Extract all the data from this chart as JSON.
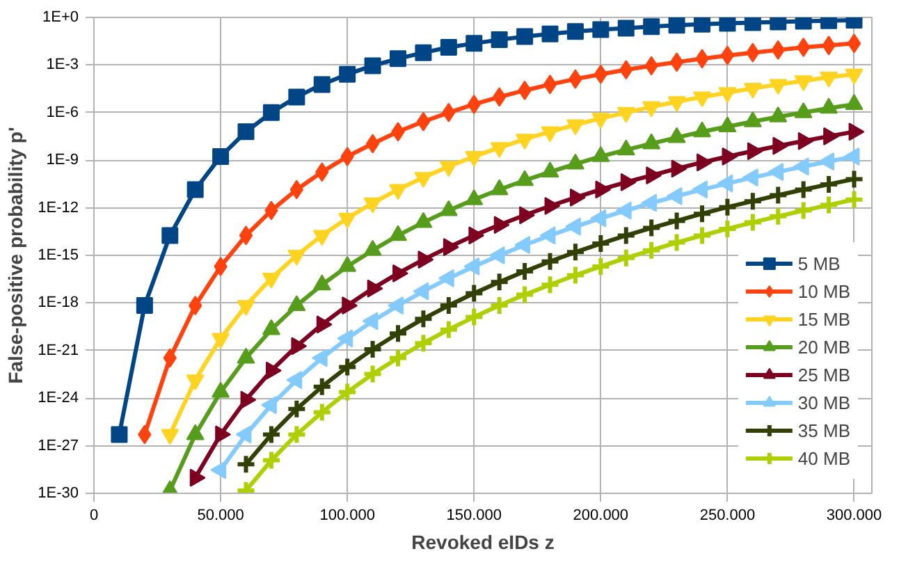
{
  "chart_data": {
    "type": "line",
    "xlabel": "Revoked eIDs z",
    "ylabel": "False-positive probability p'",
    "log": "y",
    "x": [
      10000,
      20000,
      30000,
      40000,
      50000,
      60000,
      70000,
      80000,
      90000,
      100000,
      110000,
      120000,
      130000,
      140000,
      150000,
      160000,
      170000,
      180000,
      190000,
      200000,
      210000,
      220000,
      230000,
      240000,
      250000,
      260000,
      270000,
      280000,
      290000,
      300000
    ],
    "xlim": [
      0,
      307000
    ],
    "xticks": [
      {
        "value": 0,
        "label": "0"
      },
      {
        "value": 50000,
        "label": "50.000"
      },
      {
        "value": 100000,
        "label": "100.000"
      },
      {
        "value": 150000,
        "label": "150.000"
      },
      {
        "value": 200000,
        "label": "200.000"
      },
      {
        "value": 250000,
        "label": "250.000"
      },
      {
        "value": 300000,
        "label": "300.000"
      }
    ],
    "ylim": [
      1e-30,
      1
    ],
    "yticks": [
      {
        "value": 1,
        "label": "1E+0"
      },
      {
        "value": 0.001,
        "label": "1E-3"
      },
      {
        "value": 1e-06,
        "label": "1E-6"
      },
      {
        "value": 1e-09,
        "label": "1E-9"
      },
      {
        "value": 1e-12,
        "label": "1E-12"
      },
      {
        "value": 1e-15,
        "label": "1E-15"
      },
      {
        "value": 1e-18,
        "label": "1E-18"
      },
      {
        "value": 1e-21,
        "label": "1E-21"
      },
      {
        "value": 1e-24,
        "label": "1E-24"
      },
      {
        "value": 1e-27,
        "label": "1E-27"
      },
      {
        "value": 1e-30,
        "label": "1E-30"
      }
    ],
    "grid": true,
    "legend": "bottom right",
    "line_style": "solid",
    "series": [
      {
        "name": "5 MB",
        "color": "#004586",
        "marker": "square",
        "values": [
          5.1e-27,
          6.9e-19,
          1.8e-14,
          1.4e-11,
          1.7e-09,
          6.2e-08,
          1e-06,
          9.6e-06,
          5.9e-05,
          0.00026,
          0.0009,
          0.0025,
          0.006,
          0.013,
          0.023,
          0.039,
          0.062,
          0.091,
          0.13,
          0.17,
          0.21,
          0.26,
          0.32,
          0.37,
          0.42,
          0.47,
          0.52,
          0.57,
          0.62,
          0.66
        ]
      },
      {
        "name": "10 MB",
        "color": "#ff420e",
        "marker": "diamond",
        "values": [
          null,
          5.1e-27,
          3.4e-22,
          6.9e-19,
          2e-16,
          1.8e-14,
          6.7e-13,
          1.4e-11,
          1.8e-10,
          1.7e-09,
          1.1e-08,
          6.2e-08,
          2.7e-07,
          1e-06,
          3.3e-06,
          9.6e-06,
          2.5e-05,
          5.9e-05,
          0.00013,
          0.00026,
          0.0005,
          0.0009,
          0.0015,
          0.0025,
          0.004,
          0.006,
          0.0088,
          0.013,
          0.017,
          0.023
        ]
      },
      {
        "name": "15 MB",
        "color": "#ffd320",
        "marker": "triangle_down",
        "values": [
          null,
          null,
          5.1e-27,
          1.4e-23,
          5.8e-21,
          6.9e-19,
          3.6e-17,
          1e-15,
          1.8e-14,
          2.2e-13,
          2e-12,
          1.4e-11,
          8.1e-11,
          4e-10,
          1.7e-09,
          6.2e-09,
          2.1e-08,
          6.2e-08,
          1.7e-07,
          4.3e-07,
          1e-06,
          2.3e-06,
          4.8e-06,
          9.6e-06,
          1.8e-05,
          3.4e-05,
          5.9e-05,
          0.0001,
          0.00017,
          0.00026
        ]
      },
      {
        "name": "20 MB",
        "color": "#579d1c",
        "marker": "triangle",
        "values": [
          null,
          null,
          1.5e-30,
          5.1e-27,
          2.4e-24,
          3.4e-22,
          2.1e-20,
          6.9e-19,
          1.4e-17,
          2e-16,
          2.1e-15,
          1.8e-14,
          1.2e-13,
          6.7e-13,
          3.3e-12,
          1.4e-11,
          5.3e-11,
          1.8e-10,
          5.8e-10,
          1.7e-09,
          4.5e-09,
          1.1e-08,
          2.7e-08,
          6.2e-08,
          1.3e-07,
          2.7e-07,
          5.4e-07,
          1e-06,
          1.9e-06,
          3.3e-06
        ]
      },
      {
        "name": "25 MB",
        "color": "#7e0021",
        "marker": "triangle_right",
        "values": [
          null,
          null,
          null,
          9.6e-30,
          5.1e-27,
          7.9e-25,
          5.4e-23,
          1.9e-21,
          4.4e-20,
          6.9e-19,
          8.1e-18,
          7.3e-17,
          5.4e-16,
          3.3e-15,
          1.8e-14,
          8.3e-14,
          3.4e-13,
          1.3e-12,
          4.4e-12,
          1.4e-11,
          4.1e-11,
          1.1e-10,
          2.9e-10,
          7.2e-10,
          1.7e-09,
          3.7e-09,
          7.9e-09,
          1.6e-08,
          3.2e-08,
          6.2e-08
        ]
      },
      {
        "name": "30 MB",
        "color": "#83caff",
        "marker": "triangle_left",
        "values": [
          null,
          null,
          null,
          null,
          3e-29,
          5.1e-27,
          3.7e-25,
          1.4e-23,
          3.4e-22,
          5.8e-21,
          7.2e-20,
          6.9e-19,
          5.4e-18,
          3.6e-17,
          2e-16,
          1e-15,
          4.5e-15,
          1.8e-14,
          6.5e-14,
          2.2e-13,
          6.7e-13,
          2e-12,
          5.4e-12,
          1.4e-11,
          3.4e-11,
          8.1e-11,
          1.8e-10,
          4e-10,
          8.3e-10,
          1.7e-09
        ]
      },
      {
        "name": "35 MB",
        "color": "#314004",
        "marker": "cross",
        "values": [
          null,
          null,
          null,
          null,
          null,
          6.7e-29,
          5.1e-27,
          2.1e-25,
          5.3e-24,
          9.2e-23,
          1.2e-21,
          1.2e-20,
          1e-19,
          6.9e-19,
          4.1e-18,
          2.1e-17,
          9.8e-17,
          4.1e-16,
          1.6e-15,
          5.5e-15,
          1.8e-14,
          5.4e-14,
          1.5e-13,
          4.2e-13,
          1.1e-12,
          2.6e-12,
          6.2e-12,
          1.4e-11,
          3e-11,
          6.4e-11
        ]
      },
      {
        "name": "40 MB",
        "color": "#aecf00",
        "marker": "cross",
        "values": [
          null,
          null,
          null,
          null,
          null,
          1.5e-30,
          1.2e-28,
          5.1e-27,
          1.3e-25,
          2.4e-24,
          3.3e-23,
          3.4e-22,
          2.9e-21,
          2.1e-20,
          1.3e-19,
          6.9e-19,
          3.3e-18,
          1.4e-17,
          5.6e-17,
          2e-16,
          6.8e-16,
          2.1e-15,
          6.4e-15,
          1.8e-14,
          4.7e-14,
          1.2e-13,
          2.9e-13,
          6.7e-13,
          1.5e-12,
          3.3e-12
        ]
      }
    ]
  }
}
